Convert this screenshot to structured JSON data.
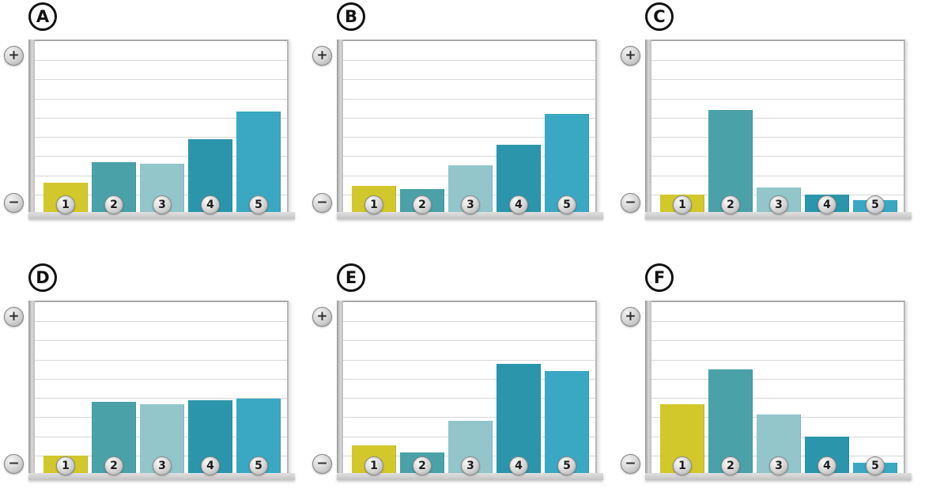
{
  "figure": {
    "background": "#ffffff",
    "yaxis_top_symbol": "+",
    "yaxis_bottom_symbol": "−",
    "bar_palette": [
      "#d2c82c",
      "#4aa2a8",
      "#92c6cb",
      "#2b96ab",
      "#3aa8c2"
    ],
    "gridline_color": "#d7d7d7"
  },
  "chart_data": [
    {
      "type": "bar",
      "title": "A",
      "categories": [
        "1",
        "2",
        "3",
        "4",
        "5"
      ],
      "values": [
        18,
        30,
        29,
        43,
        59
      ],
      "xlabel": "",
      "ylabel": "",
      "ylim": [
        0,
        100
      ],
      "yaxis_top_symbol": "+",
      "yaxis_bottom_symbol": "−",
      "grid": "horizontal",
      "legend": "none",
      "bar_colors": [
        "#d2c82c",
        "#4aa2a8",
        "#92c6cb",
        "#2b96ab",
        "#3aa8c2"
      ]
    },
    {
      "type": "bar",
      "title": "B",
      "categories": [
        "1",
        "2",
        "3",
        "4",
        "5"
      ],
      "values": [
        16,
        14,
        28,
        40,
        58
      ],
      "xlabel": "",
      "ylabel": "",
      "ylim": [
        0,
        100
      ],
      "yaxis_top_symbol": "+",
      "yaxis_bottom_symbol": "−",
      "grid": "horizontal",
      "legend": "none",
      "bar_colors": [
        "#d2c82c",
        "#4aa2a8",
        "#92c6cb",
        "#2b96ab",
        "#3aa8c2"
      ]
    },
    {
      "type": "bar",
      "title": "C",
      "categories": [
        "1",
        "2",
        "3",
        "4",
        "5"
      ],
      "values": [
        11,
        60,
        15,
        11,
        8
      ],
      "xlabel": "",
      "ylabel": "",
      "ylim": [
        0,
        100
      ],
      "yaxis_top_symbol": "+",
      "yaxis_bottom_symbol": "−",
      "grid": "horizontal",
      "legend": "none",
      "bar_colors": [
        "#d2c82c",
        "#4aa2a8",
        "#92c6cb",
        "#2b96ab",
        "#3aa8c2"
      ]
    },
    {
      "type": "bar",
      "title": "D",
      "categories": [
        "1",
        "2",
        "3",
        "4",
        "5"
      ],
      "values": [
        11,
        42,
        41,
        43,
        44
      ],
      "xlabel": "",
      "ylabel": "",
      "ylim": [
        0,
        100
      ],
      "yaxis_top_symbol": "+",
      "yaxis_bottom_symbol": "−",
      "grid": "horizontal",
      "legend": "none",
      "bar_colors": [
        "#d2c82c",
        "#4aa2a8",
        "#92c6cb",
        "#2b96ab",
        "#3aa8c2"
      ]
    },
    {
      "type": "bar",
      "title": "E",
      "categories": [
        "1",
        "2",
        "3",
        "4",
        "5"
      ],
      "values": [
        17,
        13,
        31,
        64,
        60
      ],
      "xlabel": "",
      "ylabel": "",
      "ylim": [
        0,
        100
      ],
      "yaxis_top_symbol": "+",
      "yaxis_bottom_symbol": "−",
      "grid": "horizontal",
      "legend": "none",
      "bar_colors": [
        "#d2c82c",
        "#4aa2a8",
        "#92c6cb",
        "#2b96ab",
        "#3aa8c2"
      ]
    },
    {
      "type": "bar",
      "title": "F",
      "categories": [
        "1",
        "2",
        "3",
        "4",
        "5"
      ],
      "values": [
        41,
        61,
        35,
        22,
        7
      ],
      "xlabel": "",
      "ylabel": "",
      "ylim": [
        0,
        100
      ],
      "yaxis_top_symbol": "+",
      "yaxis_bottom_symbol": "−",
      "grid": "horizontal",
      "legend": "none",
      "bar_colors": [
        "#d2c82c",
        "#4aa2a8",
        "#92c6cb",
        "#2b96ab",
        "#3aa8c2"
      ]
    }
  ]
}
